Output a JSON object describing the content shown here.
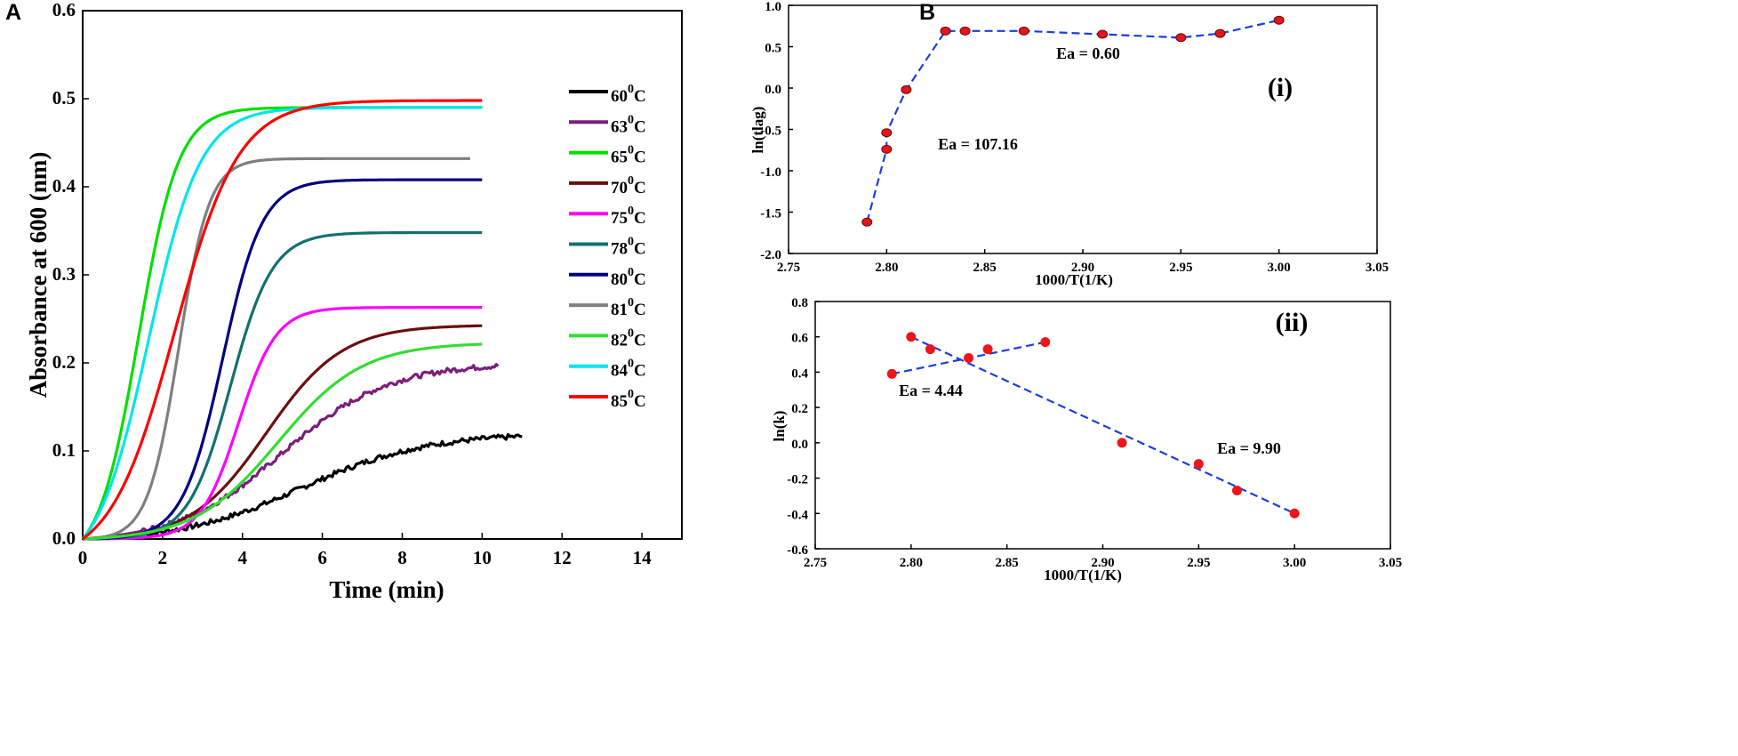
{
  "panel_labels": {
    "a": "A",
    "b": "B"
  },
  "chart_data": [
    {
      "type": "line",
      "id": "A",
      "xlabel": "Time (min)",
      "ylabel": "Absorbance at 600 (nm)",
      "xlim": [
        0,
        15
      ],
      "ylim": [
        0,
        0.6
      ],
      "xticks": [
        "0",
        "2",
        "4",
        "6",
        "8",
        "10",
        "12",
        "14"
      ],
      "yticks": [
        "0.0",
        "0.1",
        "0.2",
        "0.3",
        "0.4",
        "0.5",
        "0.6"
      ],
      "legend_title_suffix": "C",
      "legend_sup": "0",
      "series": [
        {
          "name": "60",
          "color": "#000000",
          "final": 0.12,
          "t_end": 11.0,
          "midpoint": 5.5,
          "steepness": 0.65,
          "noisy": true
        },
        {
          "name": "63",
          "color": "#7b1e7a",
          "final": 0.2,
          "t_end": 10.4,
          "midpoint": 5.0,
          "steepness": 0.75,
          "noisy": true
        },
        {
          "name": "65",
          "color": "#00e000",
          "final": 0.49,
          "t_end": 10.0,
          "midpoint": 1.4,
          "steepness": 2.0,
          "noisy": false
        },
        {
          "name": "70",
          "color": "#6b0f0f",
          "final": 0.243,
          "t_end": 10.0,
          "midpoint": 4.6,
          "steepness": 1.05,
          "noisy": false
        },
        {
          "name": "75",
          "color": "#ff00ff",
          "final": 0.263,
          "t_end": 10.0,
          "midpoint": 3.9,
          "steepness": 2.1,
          "noisy": false
        },
        {
          "name": "78",
          "color": "#137070",
          "final": 0.348,
          "t_end": 10.0,
          "midpoint": 3.7,
          "steepness": 1.9,
          "noisy": false
        },
        {
          "name": "80",
          "color": "#000080",
          "final": 0.408,
          "t_end": 10.0,
          "midpoint": 3.5,
          "steepness": 2.0,
          "noisy": false
        },
        {
          "name": "81",
          "color": "#7f7f7f",
          "final": 0.432,
          "t_end": 9.7,
          "midpoint": 2.4,
          "steepness": 2.6,
          "noisy": false
        },
        {
          "name": "82",
          "color": "#33dd33",
          "final": 0.223,
          "t_end": 10.0,
          "midpoint": 4.9,
          "steepness": 0.95,
          "noisy": false
        },
        {
          "name": "84",
          "color": "#00e5ee",
          "final": 0.49,
          "t_end": 10.0,
          "midpoint": 1.65,
          "steepness": 1.55,
          "noisy": false
        },
        {
          "name": "85",
          "color": "#ff0000",
          "final": 0.498,
          "t_end": 10.0,
          "midpoint": 2.3,
          "steepness": 1.25,
          "noisy": false
        }
      ]
    },
    {
      "type": "scatter",
      "id": "B-i",
      "panel_label": "(i)",
      "xlabel": "1000/T(1/K)",
      "ylabel": "ln(tlag)",
      "xlim": [
        2.75,
        3.05
      ],
      "ylim": [
        -2.0,
        1.0
      ],
      "xticks": [
        "2.75",
        "2.80",
        "2.85",
        "2.90",
        "2.95",
        "3.00",
        "3.05"
      ],
      "yticks": [
        "-2.0",
        "-1.5",
        "-1.0",
        "-0.5",
        "0.0",
        "0.5",
        "1.0"
      ],
      "x": [
        2.79,
        2.8,
        2.8,
        2.81,
        2.83,
        2.84,
        2.87,
        2.91,
        2.95,
        2.97,
        3.0
      ],
      "y": [
        -1.62,
        -0.74,
        -0.54,
        -0.02,
        0.69,
        0.69,
        0.69,
        0.65,
        0.61,
        0.66,
        0.82
      ],
      "marker_color": "#e8141b",
      "line_color": "#1a3fe0",
      "annotations": [
        "Ea = 0.60",
        "Ea = 107.16"
      ]
    },
    {
      "type": "scatter",
      "id": "B-ii",
      "panel_label": "(ii)",
      "xlabel": "1000/T(1/K)",
      "ylabel": "ln(k)",
      "xlim": [
        2.75,
        3.05
      ],
      "ylim": [
        -0.6,
        0.8
      ],
      "xticks": [
        "2.75",
        "2.80",
        "2.85",
        "2.90",
        "2.95",
        "3.00",
        "3.05"
      ],
      "yticks": [
        "-0.6",
        "-0.4",
        "-0.2",
        "0.0",
        "0.2",
        "0.4",
        "0.6",
        "0.8"
      ],
      "x": [
        2.79,
        2.8,
        2.81,
        2.83,
        2.84,
        2.87,
        2.91,
        2.95,
        2.97,
        3.0
      ],
      "y": [
        0.39,
        0.6,
        0.53,
        0.48,
        0.53,
        0.57,
        0.0,
        -0.12,
        -0.27,
        -0.4
      ],
      "fit_lines": [
        {
          "x": [
            2.79,
            2.87
          ],
          "y": [
            0.39,
            0.57
          ]
        },
        {
          "x": [
            2.8,
            3.0
          ],
          "y": [
            0.6,
            -0.4
          ]
        }
      ],
      "marker_color": "#f0141b",
      "line_color": "#1a3fe0",
      "annotations": [
        "Ea = 4.44",
        "Ea = 9.90"
      ]
    }
  ]
}
